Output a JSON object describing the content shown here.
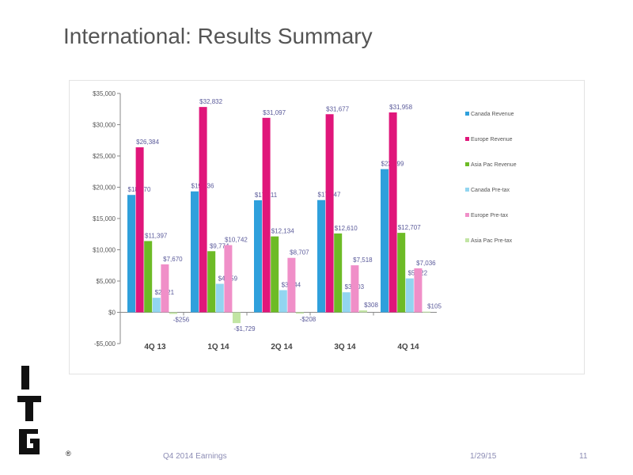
{
  "title": "International: Results Summary",
  "footer": {
    "label": "Q4 2014 Earnings",
    "date": "1/29/15",
    "page": "11"
  },
  "logo": {
    "text": "ITG",
    "mark": "®"
  },
  "chart_data": {
    "type": "bar",
    "categories": [
      "4Q 13",
      "1Q 14",
      "2Q 14",
      "3Q 14",
      "4Q 14"
    ],
    "ylim": [
      -5000,
      35000
    ],
    "yticks": [
      -5000,
      0,
      5000,
      10000,
      15000,
      20000,
      25000,
      30000,
      35000
    ],
    "ytick_labels": [
      "-$5,000",
      "$0",
      "$5,000",
      "$10,000",
      "$15,000",
      "$20,000",
      "$25,000",
      "$30,000",
      "$35,000"
    ],
    "legend_position": "right",
    "grid": false,
    "series": [
      {
        "name": "Canada Revenue",
        "color": "#2fa0dc",
        "values": [
          18770,
          19336,
          17911,
          17947,
          22899
        ],
        "labels": [
          "$18,770",
          "$19,336",
          "$17,911",
          "$17,947",
          "$22,899"
        ]
      },
      {
        "name": "Europe Revenue",
        "color": "#e0167a",
        "values": [
          26384,
          32832,
          31097,
          31677,
          31958
        ],
        "labels": [
          "$26,384",
          "$32,832",
          "$31,097",
          "$31,677",
          "$31,958"
        ]
      },
      {
        "name": "Asia Pac Revenue",
        "color": "#6dbb26",
        "values": [
          11397,
          9774,
          12134,
          12610,
          12707
        ],
        "labels": [
          "$11,397",
          "$9,774",
          "$12,134",
          "$12,610",
          "$12,707"
        ]
      },
      {
        "name": "Canada Pre-tax",
        "color": "#92d5f0",
        "values": [
          2321,
          4559,
          3544,
          3203,
          5422
        ],
        "labels": [
          "$2,321",
          "$4,559",
          "$3,544",
          "$3,203",
          "$5,422"
        ]
      },
      {
        "name": "Europe Pre-tax",
        "color": "#f08fc8",
        "values": [
          7670,
          10742,
          8707,
          7518,
          7036
        ],
        "labels": [
          "$7,670",
          "$10,742",
          "$8,707",
          "$7,518",
          "$7,036"
        ]
      },
      {
        "name": "Asia Pac Pre-tax",
        "color": "#c2e5a4",
        "values": [
          -256,
          -1729,
          -208,
          308,
          105
        ],
        "labels": [
          "-$256",
          "-$1,729",
          "-$208",
          "$308",
          "$105"
        ]
      }
    ]
  }
}
